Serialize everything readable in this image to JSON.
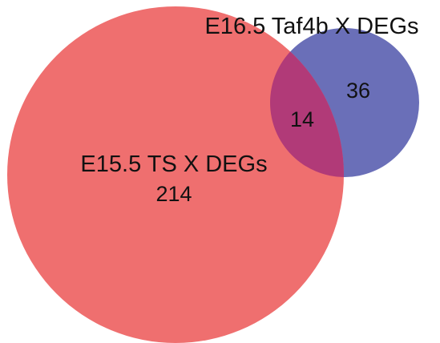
{
  "venn": {
    "sets": [
      {
        "id": "a",
        "label": "E15.5 TS X DEGs",
        "only_count": "214",
        "color": "#ef6f6f"
      },
      {
        "id": "b",
        "label": "E16.5 Taf4b X DEGs",
        "only_count": "36",
        "color": "#6a6fb8"
      }
    ],
    "intersection": {
      "count": "14",
      "color": "#b13a78"
    }
  }
}
